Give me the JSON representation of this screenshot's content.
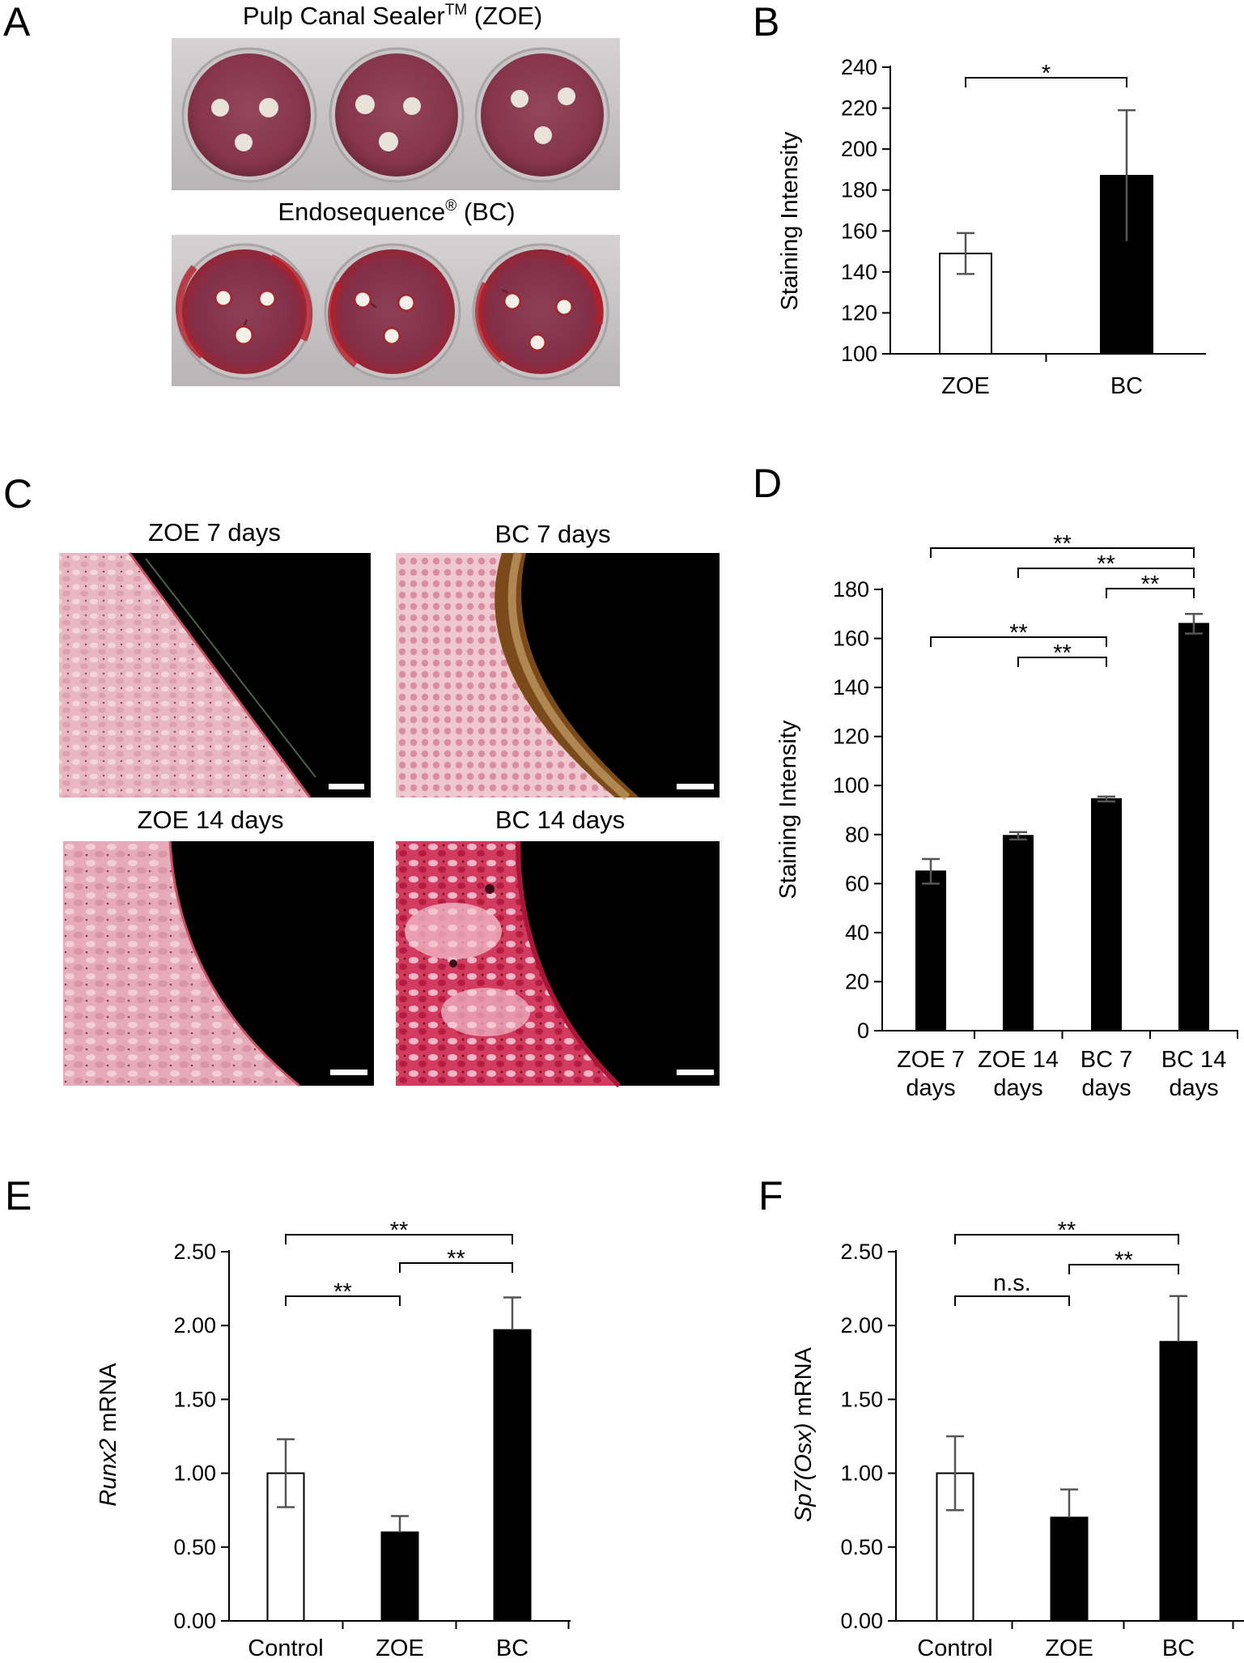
{
  "panels": {
    "A": {
      "letter": "A",
      "title_top_main": "Pulp Canal Sealer",
      "title_top_sup": "TM",
      "title_top_end": " (ZOE)",
      "title_bottom_main": "Endosequence",
      "title_bottom_sup": "®",
      "title_bottom_end": " (BC)"
    },
    "B": {
      "letter": "B"
    },
    "C": {
      "letter": "C",
      "images": [
        "ZOE 7 days",
        "BC 7 days",
        "ZOE 14 days",
        "BC 14 days"
      ]
    },
    "D": {
      "letter": "D"
    },
    "E": {
      "letter": "E"
    },
    "F": {
      "letter": "F"
    }
  },
  "colors": {
    "plate_bg": "#c9c4c6",
    "well_fill": "#8e3d52",
    "bc_stain": "#a81f2a",
    "tissue_pink": "#e7b0bb",
    "tissue_red": "#c8234b",
    "bar_dark": "#000000",
    "bar_light": "#ffffff"
  },
  "chart_data": [
    {
      "panel": "B",
      "type": "bar",
      "categories": [
        "ZOE",
        "BC"
      ],
      "values": [
        149,
        187
      ],
      "errors": [
        10,
        32
      ],
      "fills": [
        "white",
        "black"
      ],
      "ylabel": "Staining Intensity",
      "ylim": [
        100,
        240
      ],
      "yticks": [
        "100",
        "120",
        "140",
        "160",
        "180",
        "200",
        "220",
        "240"
      ],
      "significance": [
        {
          "from": 0,
          "to": 1,
          "label": "*"
        }
      ]
    },
    {
      "panel": "D",
      "type": "bar",
      "categories": [
        [
          "ZOE 7",
          "days"
        ],
        [
          "ZOE 14",
          "days"
        ],
        [
          "BC 7",
          "days"
        ],
        [
          "BC 14",
          "days"
        ]
      ],
      "values": [
        65,
        79.5,
        94.5,
        166
      ],
      "errors": [
        5,
        1.5,
        1,
        4
      ],
      "fills": [
        "black",
        "black",
        "black",
        "black"
      ],
      "ylabel": "Staining Intensity",
      "ylim": [
        0,
        180
      ],
      "yticks": [
        "0",
        "20",
        "40",
        "60",
        "80",
        "100",
        "120",
        "140",
        "160",
        "180"
      ],
      "significance": [
        {
          "from": 0,
          "to": 3,
          "label": "**"
        },
        {
          "from": 1,
          "to": 3,
          "label": "**"
        },
        {
          "from": 2,
          "to": 3,
          "label": "**"
        },
        {
          "from": 0,
          "to": 2,
          "label": "**"
        },
        {
          "from": 1,
          "to": 2,
          "label": "**"
        }
      ]
    },
    {
      "panel": "E",
      "type": "bar",
      "categories": [
        "Control",
        "ZOE",
        "BC"
      ],
      "values": [
        1.0,
        0.6,
        1.97
      ],
      "errors": [
        0.23,
        0.11,
        0.22
      ],
      "fills": [
        "white",
        "black",
        "black"
      ],
      "ylabel_italic": "Runx2",
      "ylabel_rest": " mRNA",
      "ylim": [
        0,
        2.5
      ],
      "yticks": [
        "0.00",
        "0.50",
        "1.00",
        "1.50",
        "2.00",
        "2.50"
      ],
      "significance": [
        {
          "from": 0,
          "to": 2,
          "label": "**"
        },
        {
          "from": 1,
          "to": 2,
          "label": "**"
        },
        {
          "from": 0,
          "to": 1,
          "label": "**"
        }
      ]
    },
    {
      "panel": "F",
      "type": "bar",
      "categories": [
        "Control",
        "ZOE",
        "BC"
      ],
      "values": [
        1.0,
        0.7,
        1.89
      ],
      "errors": [
        0.25,
        0.19,
        0.31
      ],
      "fills": [
        "white",
        "black",
        "black"
      ],
      "ylabel_italic": "Sp7(Osx)",
      "ylabel_rest": " mRNA",
      "ylim": [
        0,
        2.5
      ],
      "yticks": [
        "0.00",
        "0.50",
        "1.00",
        "1.50",
        "2.00",
        "2.50"
      ],
      "significance": [
        {
          "from": 0,
          "to": 2,
          "label": "**"
        },
        {
          "from": 1,
          "to": 2,
          "label": "**"
        },
        {
          "from": 0,
          "to": 1,
          "label": "n.s."
        }
      ]
    }
  ]
}
